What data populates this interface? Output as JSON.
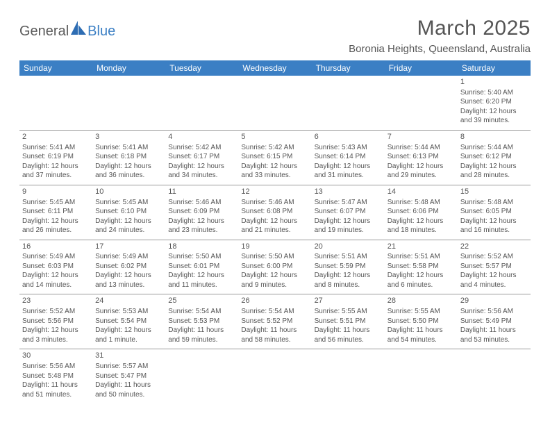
{
  "logo": {
    "part1": "General",
    "part2": "Blue"
  },
  "title": "March 2025",
  "location": "Boronia Heights, Queensland, Australia",
  "day_headers": [
    "Sunday",
    "Monday",
    "Tuesday",
    "Wednesday",
    "Thursday",
    "Friday",
    "Saturday"
  ],
  "colors": {
    "header_bg": "#3b7fc4",
    "header_fg": "#ffffff",
    "text": "#555555",
    "rule": "#999999"
  },
  "weeks": [
    [
      null,
      null,
      null,
      null,
      null,
      null,
      {
        "n": "1",
        "sr": "5:40 AM",
        "ss": "6:20 PM",
        "dl": "12 hours and 39 minutes."
      }
    ],
    [
      {
        "n": "2",
        "sr": "5:41 AM",
        "ss": "6:19 PM",
        "dl": "12 hours and 37 minutes."
      },
      {
        "n": "3",
        "sr": "5:41 AM",
        "ss": "6:18 PM",
        "dl": "12 hours and 36 minutes."
      },
      {
        "n": "4",
        "sr": "5:42 AM",
        "ss": "6:17 PM",
        "dl": "12 hours and 34 minutes."
      },
      {
        "n": "5",
        "sr": "5:42 AM",
        "ss": "6:15 PM",
        "dl": "12 hours and 33 minutes."
      },
      {
        "n": "6",
        "sr": "5:43 AM",
        "ss": "6:14 PM",
        "dl": "12 hours and 31 minutes."
      },
      {
        "n": "7",
        "sr": "5:44 AM",
        "ss": "6:13 PM",
        "dl": "12 hours and 29 minutes."
      },
      {
        "n": "8",
        "sr": "5:44 AM",
        "ss": "6:12 PM",
        "dl": "12 hours and 28 minutes."
      }
    ],
    [
      {
        "n": "9",
        "sr": "5:45 AM",
        "ss": "6:11 PM",
        "dl": "12 hours and 26 minutes."
      },
      {
        "n": "10",
        "sr": "5:45 AM",
        "ss": "6:10 PM",
        "dl": "12 hours and 24 minutes."
      },
      {
        "n": "11",
        "sr": "5:46 AM",
        "ss": "6:09 PM",
        "dl": "12 hours and 23 minutes."
      },
      {
        "n": "12",
        "sr": "5:46 AM",
        "ss": "6:08 PM",
        "dl": "12 hours and 21 minutes."
      },
      {
        "n": "13",
        "sr": "5:47 AM",
        "ss": "6:07 PM",
        "dl": "12 hours and 19 minutes."
      },
      {
        "n": "14",
        "sr": "5:48 AM",
        "ss": "6:06 PM",
        "dl": "12 hours and 18 minutes."
      },
      {
        "n": "15",
        "sr": "5:48 AM",
        "ss": "6:05 PM",
        "dl": "12 hours and 16 minutes."
      }
    ],
    [
      {
        "n": "16",
        "sr": "5:49 AM",
        "ss": "6:03 PM",
        "dl": "12 hours and 14 minutes."
      },
      {
        "n": "17",
        "sr": "5:49 AM",
        "ss": "6:02 PM",
        "dl": "12 hours and 13 minutes."
      },
      {
        "n": "18",
        "sr": "5:50 AM",
        "ss": "6:01 PM",
        "dl": "12 hours and 11 minutes."
      },
      {
        "n": "19",
        "sr": "5:50 AM",
        "ss": "6:00 PM",
        "dl": "12 hours and 9 minutes."
      },
      {
        "n": "20",
        "sr": "5:51 AM",
        "ss": "5:59 PM",
        "dl": "12 hours and 8 minutes."
      },
      {
        "n": "21",
        "sr": "5:51 AM",
        "ss": "5:58 PM",
        "dl": "12 hours and 6 minutes."
      },
      {
        "n": "22",
        "sr": "5:52 AM",
        "ss": "5:57 PM",
        "dl": "12 hours and 4 minutes."
      }
    ],
    [
      {
        "n": "23",
        "sr": "5:52 AM",
        "ss": "5:56 PM",
        "dl": "12 hours and 3 minutes."
      },
      {
        "n": "24",
        "sr": "5:53 AM",
        "ss": "5:54 PM",
        "dl": "12 hours and 1 minute."
      },
      {
        "n": "25",
        "sr": "5:54 AM",
        "ss": "5:53 PM",
        "dl": "11 hours and 59 minutes."
      },
      {
        "n": "26",
        "sr": "5:54 AM",
        "ss": "5:52 PM",
        "dl": "11 hours and 58 minutes."
      },
      {
        "n": "27",
        "sr": "5:55 AM",
        "ss": "5:51 PM",
        "dl": "11 hours and 56 minutes."
      },
      {
        "n": "28",
        "sr": "5:55 AM",
        "ss": "5:50 PM",
        "dl": "11 hours and 54 minutes."
      },
      {
        "n": "29",
        "sr": "5:56 AM",
        "ss": "5:49 PM",
        "dl": "11 hours and 53 minutes."
      }
    ],
    [
      {
        "n": "30",
        "sr": "5:56 AM",
        "ss": "5:48 PM",
        "dl": "11 hours and 51 minutes."
      },
      {
        "n": "31",
        "sr": "5:57 AM",
        "ss": "5:47 PM",
        "dl": "11 hours and 50 minutes."
      },
      null,
      null,
      null,
      null,
      null
    ]
  ],
  "labels": {
    "sunrise": "Sunrise: ",
    "sunset": "Sunset: ",
    "daylight": "Daylight: "
  }
}
